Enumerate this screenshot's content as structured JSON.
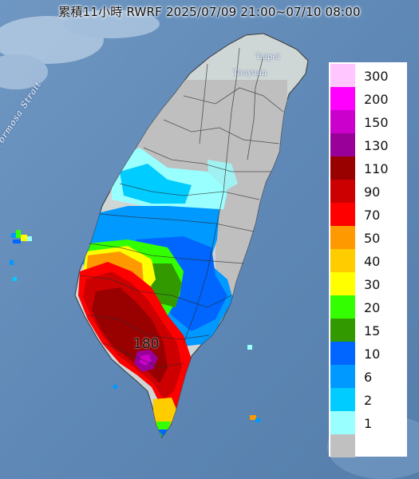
{
  "title": "累積11小時 RWRF 2025/07/09 21:00~07/10 08:00",
  "places": {
    "taipei": "Taipei",
    "taoyuan": "Taoyuan",
    "strait": "Formosa Strait"
  },
  "max_value": "180",
  "legend": [
    {
      "label": "300",
      "color": "#ffc6ff"
    },
    {
      "label": "200",
      "color": "#ff00ff"
    },
    {
      "label": "150",
      "color": "#cc00cc"
    },
    {
      "label": "130",
      "color": "#990099"
    },
    {
      "label": "110",
      "color": "#990000"
    },
    {
      "label": "90",
      "color": "#cc0000"
    },
    {
      "label": "70",
      "color": "#ff0000"
    },
    {
      "label": "50",
      "color": "#ff9900"
    },
    {
      "label": "40",
      "color": "#ffcc00"
    },
    {
      "label": "30",
      "color": "#ffff00"
    },
    {
      "label": "20",
      "color": "#33ff00"
    },
    {
      "label": "15",
      "color": "#339900"
    },
    {
      "label": "10",
      "color": "#0066ff"
    },
    {
      "label": "6",
      "color": "#0099ff"
    },
    {
      "label": "2",
      "color": "#00ccff"
    },
    {
      "label": "1",
      "color": "#99ffff"
    },
    {
      "label": "",
      "color": "#c0c0c0"
    }
  ]
}
